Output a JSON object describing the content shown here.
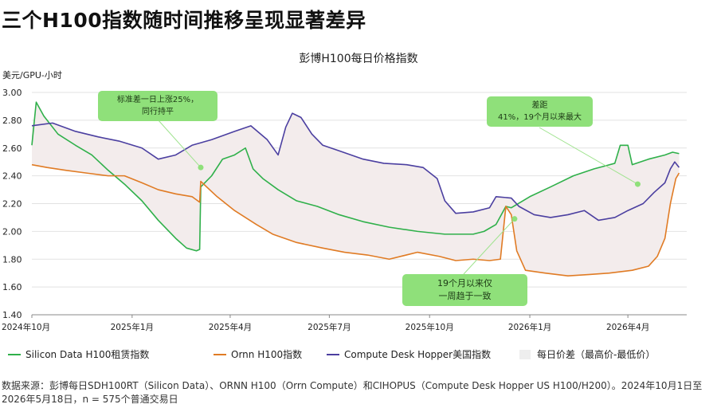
{
  "headline": "三个H100指数随时间推移呈现显著差异",
  "chart_data": {
    "type": "line",
    "title": "彭博H100每日价格指数",
    "ylabel": "美元/GPU-小时",
    "ylim": [
      1.4,
      3.0
    ],
    "yticks": [
      "3.00",
      "2.80",
      "2.60",
      "2.40",
      "2.20",
      "2.00",
      "1.80",
      "1.60",
      "1.40"
    ],
    "xticks": [
      "2024年10月",
      "2025年1月",
      "2025年4月",
      "2025年7月",
      "2025年10月",
      "2026年1月",
      "2026年4月"
    ],
    "grid": true,
    "legend_position": "bottom",
    "colors": {
      "silicon": "#2fb04a",
      "ornn": "#e07b24",
      "compute": "#4b3fa0",
      "spread": "#f3ecec",
      "annotation": "#8fe07a"
    },
    "series": [
      {
        "name": "Silicon Data H100租赁指数",
        "points": [
          [
            "2024-10-01",
            2.62
          ],
          [
            "2024-10-05",
            2.93
          ],
          [
            "2024-10-12",
            2.83
          ],
          [
            "2024-10-25",
            2.7
          ],
          [
            "2024-11-10",
            2.62
          ],
          [
            "2024-11-25",
            2.55
          ],
          [
            "2024-12-10",
            2.44
          ],
          [
            "2024-12-25",
            2.34
          ],
          [
            "2025-01-10",
            2.22
          ],
          [
            "2025-01-25",
            2.08
          ],
          [
            "2025-02-10",
            1.95
          ],
          [
            "2025-02-20",
            1.88
          ],
          [
            "2025-03-01",
            1.86
          ],
          [
            "2025-03-04",
            1.87
          ],
          [
            "2025-03-05",
            2.32
          ],
          [
            "2025-03-15",
            2.4
          ],
          [
            "2025-03-25",
            2.52
          ],
          [
            "2025-04-05",
            2.55
          ],
          [
            "2025-04-15",
            2.6
          ],
          [
            "2025-04-22",
            2.45
          ],
          [
            "2025-05-01",
            2.38
          ],
          [
            "2025-05-15",
            2.3
          ],
          [
            "2025-06-01",
            2.22
          ],
          [
            "2025-06-20",
            2.18
          ],
          [
            "2025-07-10",
            2.12
          ],
          [
            "2025-08-01",
            2.07
          ],
          [
            "2025-08-25",
            2.03
          ],
          [
            "2025-09-20",
            2.0
          ],
          [
            "2025-10-15",
            1.98
          ],
          [
            "2025-11-10",
            1.98
          ],
          [
            "2025-11-20",
            2.0
          ],
          [
            "2025-12-01",
            2.05
          ],
          [
            "2025-12-10",
            2.18
          ],
          [
            "2025-12-15",
            2.17
          ],
          [
            "2026-01-01",
            2.25
          ],
          [
            "2026-01-20",
            2.32
          ],
          [
            "2026-02-10",
            2.4
          ],
          [
            "2026-03-01",
            2.45
          ],
          [
            "2026-03-20",
            2.49
          ],
          [
            "2026-03-25",
            2.62
          ],
          [
            "2026-04-01",
            2.62
          ],
          [
            "2026-04-05",
            2.48
          ],
          [
            "2026-04-20",
            2.52
          ],
          [
            "2026-05-05",
            2.55
          ],
          [
            "2026-05-12",
            2.57
          ],
          [
            "2026-05-18",
            2.56
          ]
        ]
      },
      {
        "name": "Ornn H100指数",
        "points": [
          [
            "2024-10-01",
            2.48
          ],
          [
            "2024-10-15",
            2.46
          ],
          [
            "2024-11-01",
            2.44
          ],
          [
            "2024-11-20",
            2.42
          ],
          [
            "2024-12-10",
            2.4
          ],
          [
            "2024-12-25",
            2.4
          ],
          [
            "2025-01-10",
            2.35
          ],
          [
            "2025-01-25",
            2.3
          ],
          [
            "2025-02-10",
            2.27
          ],
          [
            "2025-02-25",
            2.25
          ],
          [
            "2025-03-04",
            2.21
          ],
          [
            "2025-03-05",
            2.36
          ],
          [
            "2025-03-20",
            2.25
          ],
          [
            "2025-04-05",
            2.15
          ],
          [
            "2025-04-25",
            2.05
          ],
          [
            "2025-05-10",
            1.98
          ],
          [
            "2025-06-01",
            1.92
          ],
          [
            "2025-06-25",
            1.88
          ],
          [
            "2025-07-15",
            1.85
          ],
          [
            "2025-08-05",
            1.83
          ],
          [
            "2025-08-25",
            1.8
          ],
          [
            "2025-09-20",
            1.85
          ],
          [
            "2025-10-10",
            1.82
          ],
          [
            "2025-10-25",
            1.79
          ],
          [
            "2025-11-10",
            1.8
          ],
          [
            "2025-11-25",
            1.79
          ],
          [
            "2025-12-05",
            1.8
          ],
          [
            "2025-12-10",
            2.18
          ],
          [
            "2025-12-15",
            2.12
          ],
          [
            "2025-12-20",
            1.86
          ],
          [
            "2025-12-28",
            1.72
          ],
          [
            "2026-01-15",
            1.7
          ],
          [
            "2026-02-05",
            1.68
          ],
          [
            "2026-02-25",
            1.69
          ],
          [
            "2026-03-15",
            1.7
          ],
          [
            "2026-04-05",
            1.72
          ],
          [
            "2026-04-20",
            1.75
          ],
          [
            "2026-04-28",
            1.82
          ],
          [
            "2026-05-05",
            1.95
          ],
          [
            "2026-05-10",
            2.2
          ],
          [
            "2026-05-15",
            2.38
          ],
          [
            "2026-05-18",
            2.42
          ]
        ]
      },
      {
        "name": "Compute Desk Hopper美国指数",
        "points": [
          [
            "2024-10-01",
            2.76
          ],
          [
            "2024-10-20",
            2.78
          ],
          [
            "2024-11-10",
            2.72
          ],
          [
            "2024-12-01",
            2.68
          ],
          [
            "2024-12-20",
            2.65
          ],
          [
            "2025-01-10",
            2.6
          ],
          [
            "2025-01-25",
            2.52
          ],
          [
            "2025-02-10",
            2.55
          ],
          [
            "2025-02-25",
            2.62
          ],
          [
            "2025-03-15",
            2.66
          ],
          [
            "2025-04-05",
            2.72
          ],
          [
            "2025-04-20",
            2.76
          ],
          [
            "2025-05-05",
            2.66
          ],
          [
            "2025-05-15",
            2.55
          ],
          [
            "2025-05-22",
            2.75
          ],
          [
            "2025-05-28",
            2.85
          ],
          [
            "2025-06-05",
            2.82
          ],
          [
            "2025-06-15",
            2.7
          ],
          [
            "2025-06-25",
            2.62
          ],
          [
            "2025-07-10",
            2.58
          ],
          [
            "2025-08-01",
            2.52
          ],
          [
            "2025-08-20",
            2.49
          ],
          [
            "2025-09-10",
            2.48
          ],
          [
            "2025-09-25",
            2.46
          ],
          [
            "2025-10-08",
            2.38
          ],
          [
            "2025-10-15",
            2.22
          ],
          [
            "2025-10-25",
            2.13
          ],
          [
            "2025-11-10",
            2.14
          ],
          [
            "2025-11-25",
            2.17
          ],
          [
            "2025-12-01",
            2.25
          ],
          [
            "2025-12-15",
            2.24
          ],
          [
            "2025-12-22",
            2.18
          ],
          [
            "2026-01-05",
            2.12
          ],
          [
            "2026-01-20",
            2.1
          ],
          [
            "2026-02-05",
            2.12
          ],
          [
            "2026-02-20",
            2.15
          ],
          [
            "2026-03-05",
            2.08
          ],
          [
            "2026-03-20",
            2.1
          ],
          [
            "2026-04-01",
            2.15
          ],
          [
            "2026-04-15",
            2.2
          ],
          [
            "2026-04-25",
            2.28
          ],
          [
            "2026-05-05",
            2.35
          ],
          [
            "2026-05-10",
            2.45
          ],
          [
            "2026-05-14",
            2.5
          ],
          [
            "2026-05-18",
            2.46
          ]
        ]
      }
    ],
    "spread_legend": "每日价差（最高价-最低价）",
    "annotations": [
      {
        "text": [
          "标准差一日上涨25%，",
          "同行持平"
        ],
        "date": "2025-03-05",
        "value": 2.46
      },
      {
        "text": [
          "差距",
          "41%，19个月以来最大"
        ],
        "date": "2026-04-10",
        "value": 2.34
      },
      {
        "text": [
          "19个月以来仅",
          "一周趋于一致"
        ],
        "date": "2025-12-18",
        "value": 2.09
      }
    ]
  },
  "source": "数据来源：彭博每日SDH100RT（Silicon Data）、ORNN H100（Orrn Compute）和CIHOPUS（Compute Desk Hopper US H100/H200）。2024年10月1日至2026年5月18日，n = 575个普通交易日"
}
